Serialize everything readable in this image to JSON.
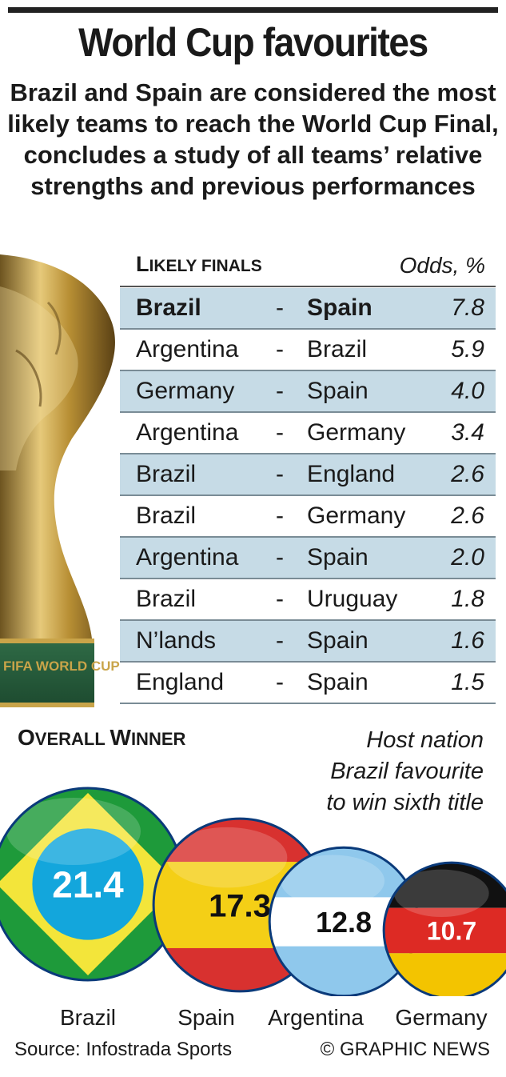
{
  "title": "World Cup favourites",
  "subtitle": "Brazil and Spain are considered the most likely teams to reach the World Cup Final, concludes a study of all teams’ relative strengths and previous performances",
  "colors": {
    "row_shade": "#c6dbe6",
    "rule": "#7a8c96",
    "gold": "#c9a449",
    "brazil_green": "#1e9a3a",
    "brazil_yellow": "#f3e53a",
    "brazil_blue": "#13a6dc",
    "spain_red": "#d8312f",
    "spain_yellow": "#f4cf16",
    "arg_blue": "#8fc8ec",
    "germany_black": "#111111",
    "germany_red": "#dd2a24",
    "germany_gold": "#f3c400"
  },
  "trophy": {
    "engraving": "FIFA WORLD CUP"
  },
  "chart_data": [
    {
      "type": "table",
      "title_first": "L",
      "title_rest": "IKELY FINALS",
      "value_header": "Odds, %",
      "rows": [
        {
          "team1": "Brazil",
          "separator": "-",
          "team2": "Spain",
          "odds": "7.8",
          "highlight": true,
          "shaded": true
        },
        {
          "team1": "Argentina",
          "separator": "-",
          "team2": "Brazil",
          "odds": "5.9",
          "highlight": false,
          "shaded": false
        },
        {
          "team1": "Germany",
          "separator": "-",
          "team2": "Spain",
          "odds": "4.0",
          "highlight": false,
          "shaded": true
        },
        {
          "team1": "Argentina",
          "separator": "-",
          "team2": "Germany",
          "odds": "3.4",
          "highlight": false,
          "shaded": false
        },
        {
          "team1": "Brazil",
          "separator": "-",
          "team2": "England",
          "odds": "2.6",
          "highlight": false,
          "shaded": true
        },
        {
          "team1": "Brazil",
          "separator": "-",
          "team2": "Germany",
          "odds": "2.6",
          "highlight": false,
          "shaded": false
        },
        {
          "team1": "Argentina",
          "separator": "-",
          "team2": "Spain",
          "odds": "2.0",
          "highlight": false,
          "shaded": true
        },
        {
          "team1": "Brazil",
          "separator": "-",
          "team2": "Uruguay",
          "odds": "1.8",
          "highlight": false,
          "shaded": false
        },
        {
          "team1": "N’lands",
          "separator": "-",
          "team2": "Spain",
          "odds": "1.6",
          "highlight": false,
          "shaded": true
        },
        {
          "team1": "England",
          "separator": "-",
          "team2": "Spain",
          "odds": "1.5",
          "highlight": false,
          "shaded": false
        }
      ]
    },
    {
      "type": "bubble",
      "title_first": "O",
      "title_rest": "VERALL ",
      "title_first2": "W",
      "title_rest2": "INNER",
      "note_lines": [
        "Host nation",
        "Brazil favourite",
        "to win sixth title"
      ],
      "categories": [
        "Brazil",
        "Spain",
        "Argentina",
        "Germany"
      ],
      "values": [
        21.4,
        17.3,
        12.8,
        10.7
      ],
      "value_labels": [
        "21.4",
        "17.3",
        "12.8",
        "10.7"
      ]
    }
  ],
  "footer": {
    "source": "Source: Infostrada Sports",
    "credit": "© GRAPHIC NEWS"
  }
}
